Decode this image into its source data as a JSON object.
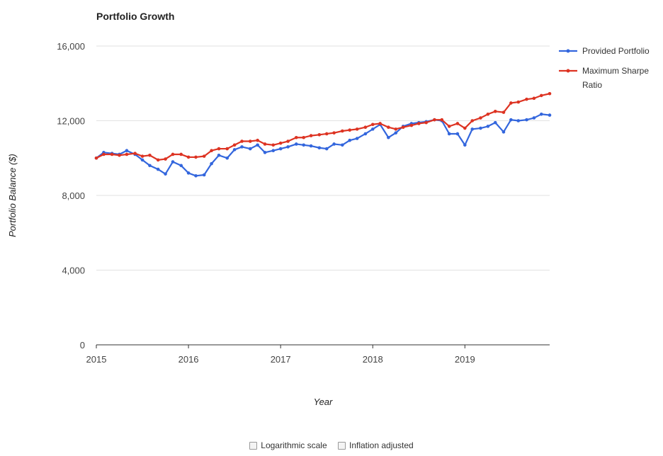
{
  "chart_data": {
    "type": "line",
    "title": "Portfolio Growth",
    "xlabel": "Year",
    "ylabel": "Portfolio Balance ($)",
    "ylim": [
      0,
      16000
    ],
    "yticks": [
      {
        "value": 0,
        "label": "0"
      },
      {
        "value": 4000,
        "label": "4,000"
      },
      {
        "value": 8000,
        "label": "8,000"
      },
      {
        "value": 12000,
        "label": "12,000"
      },
      {
        "value": 16000,
        "label": "16,000"
      }
    ],
    "xlim": [
      2015,
      2019.92
    ],
    "xticks": [
      {
        "value": 2015,
        "label": "2015"
      },
      {
        "value": 2016,
        "label": "2016"
      },
      {
        "value": 2017,
        "label": "2017"
      },
      {
        "value": 2018,
        "label": "2018"
      },
      {
        "value": 2019,
        "label": "2019"
      }
    ],
    "grid": true,
    "legend_position": "right",
    "series": [
      {
        "name": "Provided Portfolio",
        "color": "#3366dd",
        "x": [
          2015,
          2015.08,
          2015.17,
          2015.25,
          2015.33,
          2015.42,
          2015.5,
          2015.58,
          2015.67,
          2015.75,
          2015.83,
          2015.92,
          2016,
          2016.08,
          2016.17,
          2016.25,
          2016.33,
          2016.42,
          2016.5,
          2016.58,
          2016.67,
          2016.75,
          2016.83,
          2016.92,
          2017,
          2017.08,
          2017.17,
          2017.25,
          2017.33,
          2017.42,
          2017.5,
          2017.58,
          2017.67,
          2017.75,
          2017.83,
          2017.92,
          2018,
          2018.08,
          2018.17,
          2018.25,
          2018.33,
          2018.42,
          2018.5,
          2018.58,
          2018.67,
          2018.75,
          2018.83,
          2018.92,
          2019,
          2019.08,
          2019.17,
          2019.25,
          2019.33,
          2019.42,
          2019.5,
          2019.58,
          2019.67,
          2019.75,
          2019.83,
          2019.92
        ],
        "values": [
          10000,
          10300,
          10250,
          10200,
          10400,
          10200,
          9900,
          9600,
          9400,
          9150,
          9800,
          9600,
          9200,
          9050,
          9100,
          9700,
          10150,
          10000,
          10450,
          10600,
          10500,
          10700,
          10300,
          10400,
          10500,
          10600,
          10750,
          10700,
          10650,
          10550,
          10500,
          10750,
          10700,
          10950,
          11050,
          11300,
          11550,
          11800,
          11100,
          11350,
          11700,
          11850,
          11900,
          11950,
          12050,
          12000,
          11300,
          11300,
          10700,
          11550,
          11600,
          11700,
          11900,
          11400,
          12050,
          12000,
          12050,
          12150,
          12350,
          12300
        ]
      },
      {
        "name": "Maximum Sharpe Ratio",
        "color": "#dd3322",
        "x": [
          2015,
          2015.08,
          2015.17,
          2015.25,
          2015.33,
          2015.42,
          2015.5,
          2015.58,
          2015.67,
          2015.75,
          2015.83,
          2015.92,
          2016,
          2016.08,
          2016.17,
          2016.25,
          2016.33,
          2016.42,
          2016.5,
          2016.58,
          2016.67,
          2016.75,
          2016.83,
          2016.92,
          2017,
          2017.08,
          2017.17,
          2017.25,
          2017.33,
          2017.42,
          2017.5,
          2017.58,
          2017.67,
          2017.75,
          2017.83,
          2017.92,
          2018,
          2018.08,
          2018.17,
          2018.25,
          2018.33,
          2018.42,
          2018.5,
          2018.58,
          2018.67,
          2018.75,
          2018.83,
          2018.92,
          2019,
          2019.08,
          2019.17,
          2019.25,
          2019.33,
          2019.42,
          2019.5,
          2019.58,
          2019.67,
          2019.75,
          2019.83,
          2019.92
        ],
        "values": [
          10000,
          10200,
          10200,
          10150,
          10200,
          10250,
          10100,
          10150,
          9900,
          9950,
          10200,
          10200,
          10050,
          10050,
          10100,
          10400,
          10500,
          10500,
          10700,
          10900,
          10900,
          10950,
          10750,
          10700,
          10800,
          10900,
          11100,
          11100,
          11200,
          11250,
          11300,
          11350,
          11450,
          11500,
          11550,
          11650,
          11800,
          11850,
          11650,
          11550,
          11650,
          11750,
          11850,
          11900,
          12050,
          12050,
          11700,
          11850,
          11600,
          12000,
          12150,
          12350,
          12500,
          12450,
          12950,
          13000,
          13150,
          13200,
          13350,
          13450
        ]
      }
    ]
  },
  "options": {
    "log_scale_label": "Logarithmic scale",
    "inflation_label": "Inflation adjusted"
  }
}
